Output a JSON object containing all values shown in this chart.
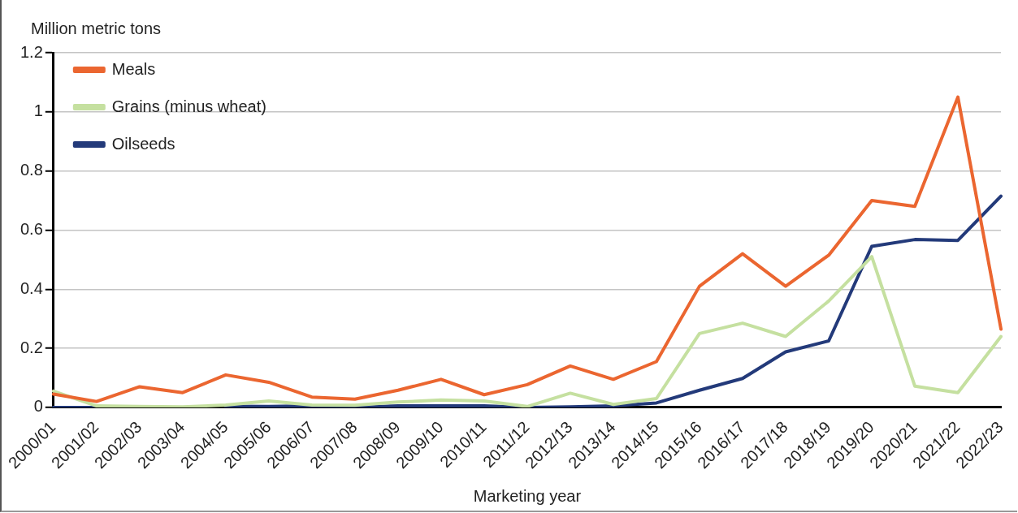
{
  "chart_data": {
    "type": "line",
    "ylabel": "Million metric tons",
    "xlabel": "Marketing year",
    "categories": [
      "2000/01",
      "2001/02",
      "2002/03",
      "2003/04",
      "2004/05",
      "2005/06",
      "2006/07",
      "2007/08",
      "2008/09",
      "2009/10",
      "2010/11",
      "2011/12",
      "2012/13",
      "2013/14",
      "2014/15",
      "2015/16",
      "2016/17",
      "2017/18",
      "2018/19",
      "2019/20",
      "2020/21",
      "2021/22",
      "2022/23"
    ],
    "series": [
      {
        "name": "Meals",
        "color": "#eb6630",
        "values": [
          0.045,
          0.02,
          0.07,
          0.05,
          0.11,
          0.085,
          0.035,
          0.028,
          0.058,
          0.095,
          0.043,
          0.077,
          0.14,
          0.095,
          0.155,
          0.41,
          0.52,
          0.41,
          0.515,
          0.7,
          0.68,
          1.05,
          0.265
        ]
      },
      {
        "name": "Grains (minus wheat)",
        "color": "#c5e0a0",
        "values": [
          0.055,
          0.005,
          0.003,
          0.002,
          0.008,
          0.022,
          0.008,
          0.007,
          0.018,
          0.025,
          0.022,
          0.003,
          0.048,
          0.01,
          0.03,
          0.25,
          0.285,
          0.24,
          0.36,
          0.51,
          0.072,
          0.05,
          0.24
        ]
      },
      {
        "name": "Oilseeds",
        "color": "#233a7a",
        "values": [
          0,
          0,
          0,
          null,
          0.004,
          0.003,
          0.005,
          0,
          0.005,
          0.005,
          0.005,
          0,
          0.002,
          0.005,
          0.015,
          0.058,
          0.098,
          0.188,
          0.225,
          0.545,
          0.568,
          0.565,
          0.715
        ]
      }
    ],
    "ylim": [
      0,
      1.2
    ],
    "yticks": [
      0,
      0.2,
      0.4,
      0.6,
      0.8,
      1,
      1.2
    ],
    "grid": "y",
    "legend": "top left",
    "marker": "none",
    "line_style": "solid"
  }
}
